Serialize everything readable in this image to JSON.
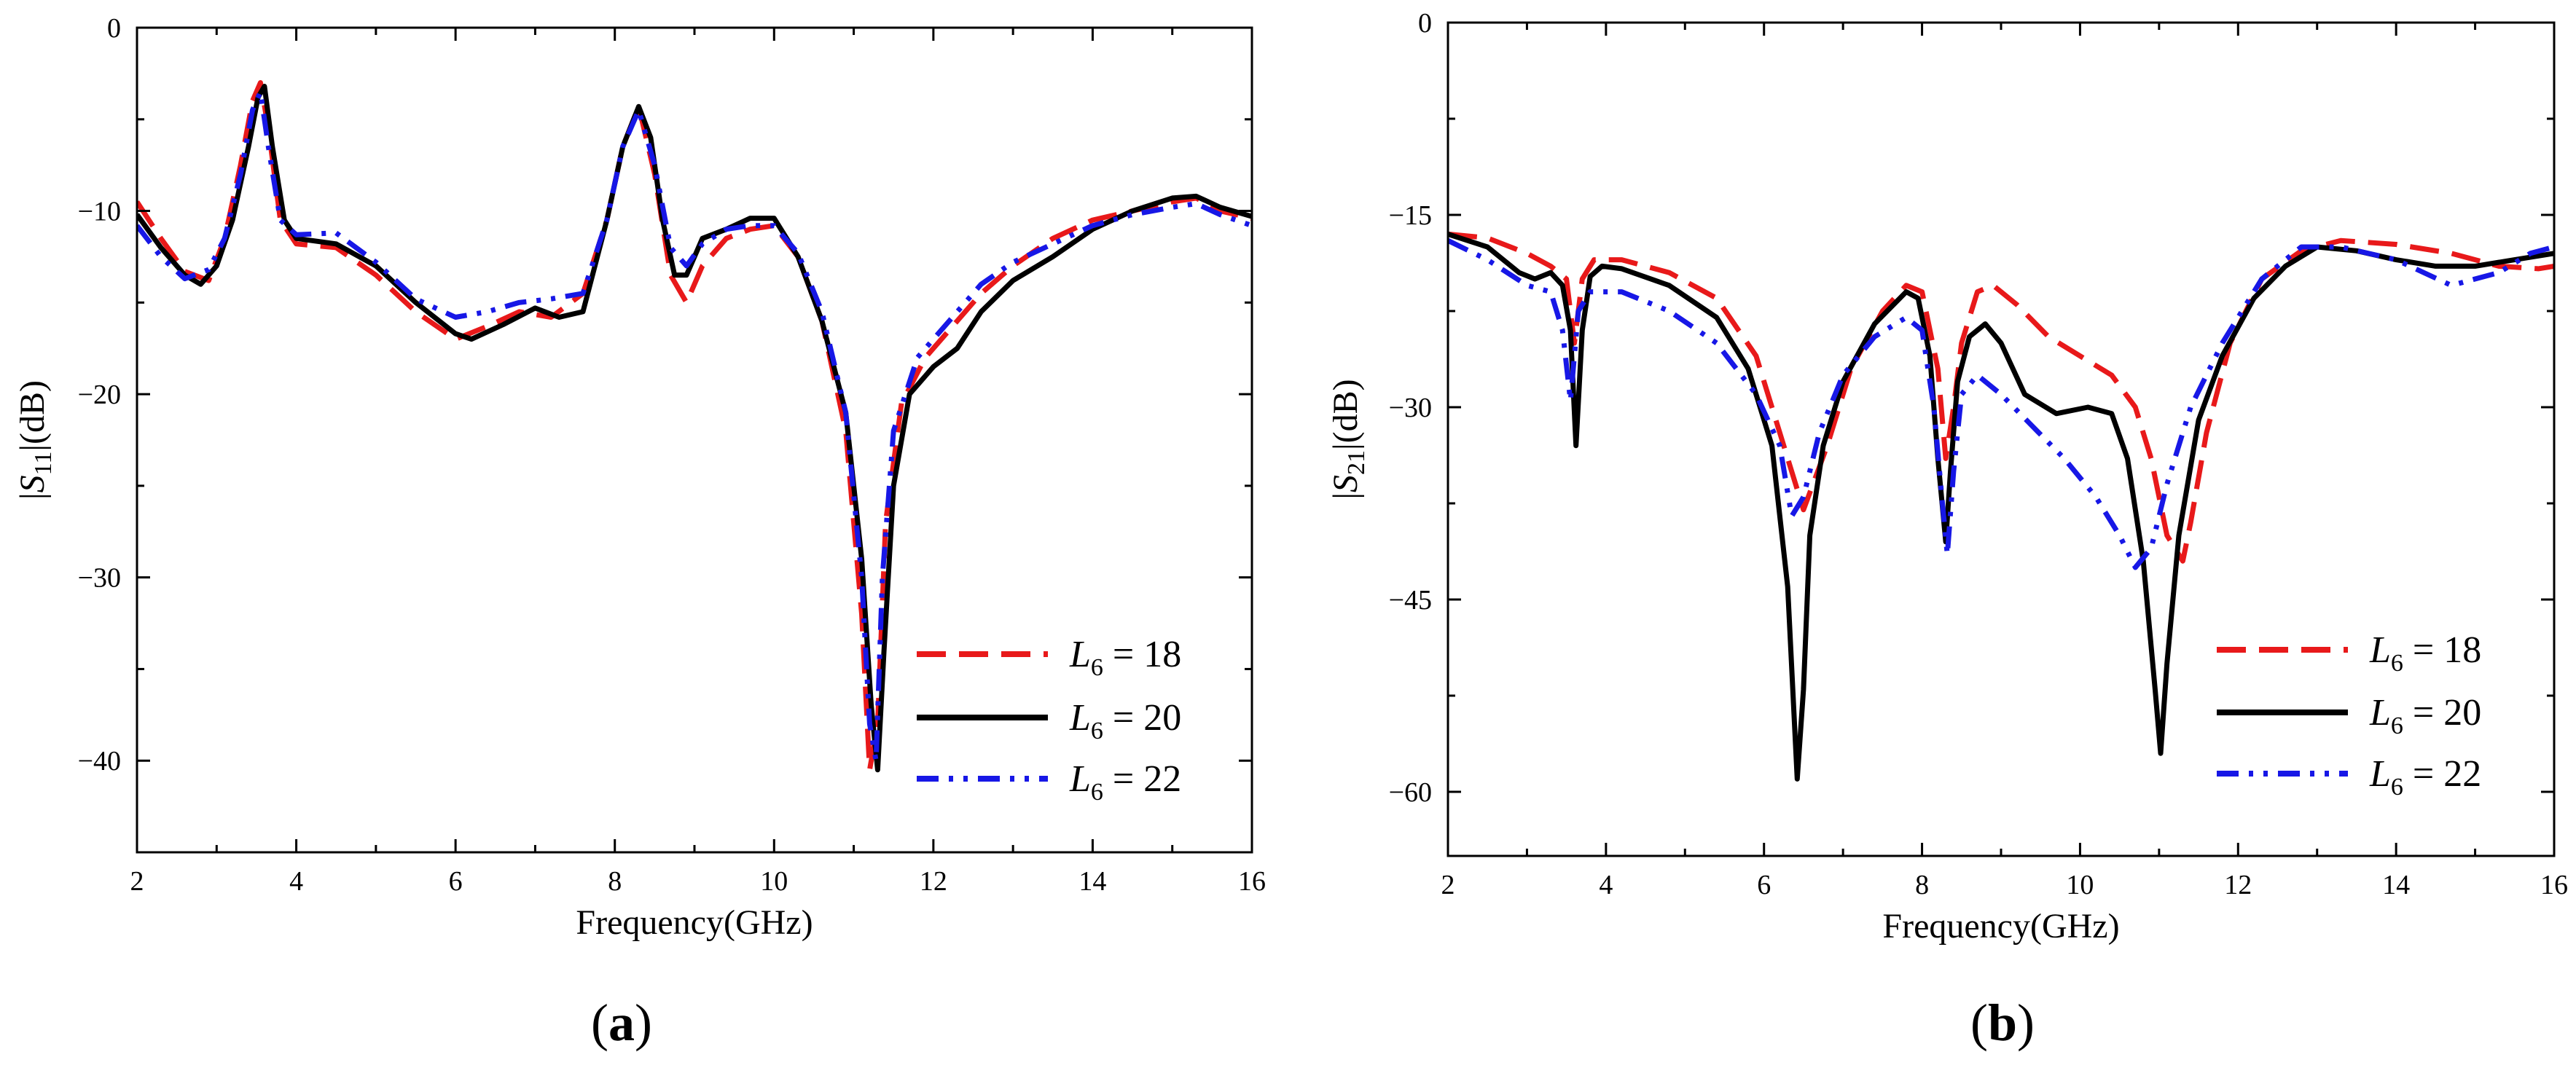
{
  "colors": {
    "L6_18": "#e8191a",
    "L6_20": "#000000",
    "L6_22": "#1717e6"
  },
  "chart_data": [
    {
      "panel_label": "a",
      "type": "line",
      "xlabel": "Frequency(GHz)",
      "ylabel": {
        "pre": "|",
        "var": "S",
        "sub": "11",
        "post": "|(dB)"
      },
      "xlim": [
        2,
        16
      ],
      "ylim": [
        -45,
        0
      ],
      "xticks": [
        2,
        4,
        6,
        8,
        10,
        12,
        14,
        16
      ],
      "yticks": [
        0,
        -10,
        -20,
        -30,
        -40
      ],
      "ytick_labels": [
        "0",
        "−10",
        "−20",
        "−30",
        "−40"
      ],
      "legend_position": "bottom-right",
      "series": [
        {
          "name": "L6 = 18",
          "var": "L",
          "sub": "6",
          "value_text": " = 18",
          "dash": "dash",
          "color_key": "L6_18",
          "x": [
            2,
            2.3,
            2.6,
            2.9,
            3.1,
            3.3,
            3.45,
            3.55,
            3.65,
            3.8,
            4.0,
            4.5,
            5.0,
            5.5,
            6.0,
            6.4,
            6.8,
            7.2,
            7.6,
            7.9,
            8.1,
            8.3,
            8.5,
            8.7,
            8.9,
            9.1,
            9.4,
            9.7,
            10.0,
            10.3,
            10.6,
            10.9,
            11.1,
            11.2,
            11.3,
            11.4,
            11.6,
            11.9,
            12.2,
            12.6,
            13.0,
            13.5,
            14.0,
            14.5,
            15.0,
            15.3,
            15.6,
            16.0
          ],
          "y": [
            -9.5,
            -11.5,
            -13.3,
            -13.8,
            -11.5,
            -7.5,
            -4.0,
            -3.0,
            -5.5,
            -10.5,
            -11.8,
            -12.0,
            -13.5,
            -15.5,
            -17.0,
            -16.3,
            -15.5,
            -15.8,
            -14.5,
            -10.5,
            -6.5,
            -4.3,
            -8.0,
            -13.5,
            -15.0,
            -13.0,
            -11.5,
            -11.0,
            -10.8,
            -12.5,
            -16.0,
            -22.0,
            -32.0,
            -40.5,
            -38.0,
            -27.0,
            -20.5,
            -18.0,
            -16.5,
            -14.5,
            -13.0,
            -11.5,
            -10.5,
            -10.0,
            -9.5,
            -9.3,
            -10.0,
            -10.4
          ]
        },
        {
          "name": "L6 = 20",
          "var": "L",
          "sub": "6",
          "value_text": " = 20",
          "dash": "solid",
          "color_key": "L6_20",
          "x": [
            2,
            2.3,
            2.6,
            2.8,
            3.0,
            3.2,
            3.4,
            3.52,
            3.6,
            3.7,
            3.85,
            4.0,
            4.5,
            5.0,
            5.5,
            6.0,
            6.2,
            6.6,
            7.0,
            7.3,
            7.6,
            7.9,
            8.1,
            8.3,
            8.45,
            8.6,
            8.75,
            8.9,
            9.1,
            9.4,
            9.7,
            10.0,
            10.3,
            10.6,
            10.9,
            11.1,
            11.22,
            11.3,
            11.38,
            11.5,
            11.7,
            12.0,
            12.3,
            12.6,
            13.0,
            13.5,
            14.0,
            14.5,
            15.0,
            15.3,
            15.6,
            16.0
          ],
          "y": [
            -10.2,
            -12.0,
            -13.5,
            -14.0,
            -13.0,
            -10.5,
            -6.5,
            -3.8,
            -3.2,
            -6.5,
            -10.5,
            -11.5,
            -11.8,
            -13.0,
            -15.0,
            -16.7,
            -17.0,
            -16.2,
            -15.3,
            -15.8,
            -15.5,
            -10.5,
            -6.5,
            -4.3,
            -6.0,
            -10.5,
            -13.5,
            -13.5,
            -11.5,
            -11.0,
            -10.4,
            -10.4,
            -12.5,
            -16.0,
            -21.0,
            -29.0,
            -37.0,
            -40.5,
            -34.0,
            -25.0,
            -20.0,
            -18.5,
            -17.5,
            -15.5,
            -13.8,
            -12.5,
            -11.0,
            -10.0,
            -9.3,
            -9.2,
            -9.8,
            -10.3
          ]
        },
        {
          "name": "L6 = 22",
          "var": "L",
          "sub": "6",
          "value_text": " = 22",
          "dash": "dashdot",
          "color_key": "L6_22",
          "x": [
            2,
            2.3,
            2.6,
            2.9,
            3.1,
            3.3,
            3.45,
            3.55,
            3.65,
            3.8,
            4.0,
            4.5,
            5.0,
            5.5,
            6.0,
            6.4,
            6.8,
            7.2,
            7.6,
            7.9,
            8.1,
            8.3,
            8.5,
            8.7,
            8.9,
            9.1,
            9.4,
            9.7,
            10.0,
            10.3,
            10.6,
            10.9,
            11.1,
            11.2,
            11.28,
            11.36,
            11.5,
            11.8,
            12.2,
            12.6,
            13.0,
            13.5,
            14.0,
            14.5,
            15.0,
            15.3,
            15.6,
            16.0
          ],
          "y": [
            -10.8,
            -12.5,
            -13.7,
            -13.2,
            -11.5,
            -8.0,
            -4.5,
            -3.5,
            -6.5,
            -10.5,
            -11.3,
            -11.2,
            -12.8,
            -14.8,
            -15.8,
            -15.5,
            -15.0,
            -14.8,
            -14.5,
            -10.5,
            -6.5,
            -4.5,
            -7.5,
            -12.0,
            -13.0,
            -11.8,
            -11.0,
            -10.8,
            -10.8,
            -12.3,
            -15.5,
            -21.0,
            -30.0,
            -38.0,
            -40.0,
            -30.0,
            -22.0,
            -18.0,
            -16.0,
            -14.0,
            -12.8,
            -11.8,
            -10.8,
            -10.2,
            -9.8,
            -9.6,
            -10.2,
            -10.8
          ]
        }
      ]
    },
    {
      "panel_label": "b",
      "type": "line",
      "xlabel": "Frequency(GHz)",
      "ylabel": {
        "pre": "|",
        "var": "S",
        "sub": "21",
        "post": "|(dB)"
      },
      "xlim": [
        2,
        16
      ],
      "ylim": [
        -65,
        0
      ],
      "xticks": [
        2,
        4,
        6,
        8,
        10,
        12,
        14,
        16
      ],
      "yticks": [
        0,
        -15,
        -30,
        -45,
        -60
      ],
      "ytick_labels": [
        "0",
        "−15",
        "−30",
        "−45",
        "−60"
      ],
      "legend_position": "bottom-right",
      "series": [
        {
          "name": "L6 = 18",
          "var": "L",
          "sub": "6",
          "value_text": " = 18",
          "dash": "dash",
          "color_key": "L6_18",
          "x": [
            2,
            2.5,
            3.0,
            3.3,
            3.5,
            3.6,
            3.7,
            3.85,
            4.2,
            4.8,
            5.4,
            5.9,
            6.2,
            6.5,
            6.8,
            7.1,
            7.5,
            7.8,
            8.0,
            8.2,
            8.3,
            8.4,
            8.5,
            8.7,
            8.9,
            9.2,
            9.6,
            10.0,
            10.4,
            10.7,
            10.9,
            11.1,
            11.3,
            11.4,
            11.6,
            11.9,
            12.3,
            12.8,
            13.3,
            14.0,
            14.7,
            15.3,
            15.8,
            16.0
          ],
          "y": [
            -16.5,
            -16.8,
            -18.0,
            -19.0,
            -20.0,
            -25.0,
            -20.0,
            -18.5,
            -18.5,
            -19.5,
            -21.5,
            -26.0,
            -32.0,
            -38.0,
            -33.0,
            -27.0,
            -22.5,
            -20.5,
            -21.0,
            -27.0,
            -34.0,
            -30.0,
            -25.0,
            -21.0,
            -20.5,
            -22.0,
            -24.5,
            -26.0,
            -27.5,
            -30.0,
            -34.0,
            -40.0,
            -42.0,
            -39.0,
            -32.0,
            -25.0,
            -20.0,
            -17.8,
            -17.0,
            -17.3,
            -18.0,
            -19.0,
            -19.2,
            -19.0
          ]
        },
        {
          "name": "L6 = 20",
          "var": "L",
          "sub": "6",
          "value_text": " = 20",
          "dash": "solid",
          "color_key": "L6_20",
          "x": [
            2,
            2.5,
            2.9,
            3.1,
            3.3,
            3.45,
            3.55,
            3.62,
            3.7,
            3.8,
            3.95,
            4.2,
            4.8,
            5.4,
            5.8,
            6.1,
            6.3,
            6.42,
            6.5,
            6.58,
            6.75,
            7.0,
            7.4,
            7.8,
            7.95,
            8.1,
            8.2,
            8.3,
            8.36,
            8.45,
            8.6,
            8.8,
            9.0,
            9.3,
            9.7,
            10.1,
            10.4,
            10.6,
            10.8,
            10.95,
            11.02,
            11.1,
            11.25,
            11.5,
            11.8,
            12.2,
            12.6,
            13.0,
            13.5,
            14.0,
            14.5,
            15.0,
            15.5,
            16.0
          ],
          "y": [
            -16.5,
            -17.5,
            -19.5,
            -20.0,
            -19.5,
            -20.5,
            -24.0,
            -33.0,
            -24.0,
            -19.8,
            -19.0,
            -19.2,
            -20.5,
            -23.0,
            -27.0,
            -33.0,
            -44.0,
            -59.0,
            -52.0,
            -40.0,
            -33.0,
            -28.0,
            -23.5,
            -21.0,
            -21.5,
            -26.0,
            -34.0,
            -40.5,
            -35.0,
            -28.0,
            -24.5,
            -23.5,
            -25.0,
            -29.0,
            -30.5,
            -30.0,
            -30.5,
            -34.0,
            -42.0,
            -52.0,
            -57.0,
            -50.0,
            -40.0,
            -31.0,
            -26.0,
            -21.5,
            -19.0,
            -17.5,
            -17.8,
            -18.5,
            -19.0,
            -19.0,
            -18.5,
            -18.0
          ]
        },
        {
          "name": "L6 = 22",
          "var": "L",
          "sub": "6",
          "value_text": " = 22",
          "dash": "dashdot",
          "color_key": "L6_22",
          "x": [
            2,
            2.5,
            3.0,
            3.3,
            3.45,
            3.55,
            3.65,
            3.8,
            4.2,
            4.8,
            5.4,
            5.9,
            6.2,
            6.35,
            6.5,
            6.7,
            7.0,
            7.4,
            7.8,
            8.0,
            8.15,
            8.25,
            8.32,
            8.4,
            8.5,
            8.7,
            9.0,
            9.4,
            9.8,
            10.2,
            10.5,
            10.7,
            10.9,
            11.1,
            11.4,
            11.8,
            12.3,
            12.8,
            13.3,
            14.0,
            14.7,
            15.3,
            15.7,
            16.0
          ],
          "y": [
            -17.0,
            -18.5,
            -20.5,
            -21.0,
            -24.0,
            -29.5,
            -22.5,
            -21.0,
            -21.0,
            -22.5,
            -25.0,
            -29.0,
            -33.0,
            -38.5,
            -37.0,
            -32.0,
            -27.5,
            -24.5,
            -23.0,
            -24.0,
            -30.0,
            -37.0,
            -41.5,
            -35.0,
            -29.0,
            -27.5,
            -29.0,
            -31.5,
            -34.0,
            -37.0,
            -40.0,
            -42.5,
            -41.0,
            -36.0,
            -30.0,
            -25.0,
            -20.0,
            -17.5,
            -17.5,
            -18.5,
            -20.5,
            -19.5,
            -18.0,
            -17.5
          ]
        }
      ]
    }
  ]
}
